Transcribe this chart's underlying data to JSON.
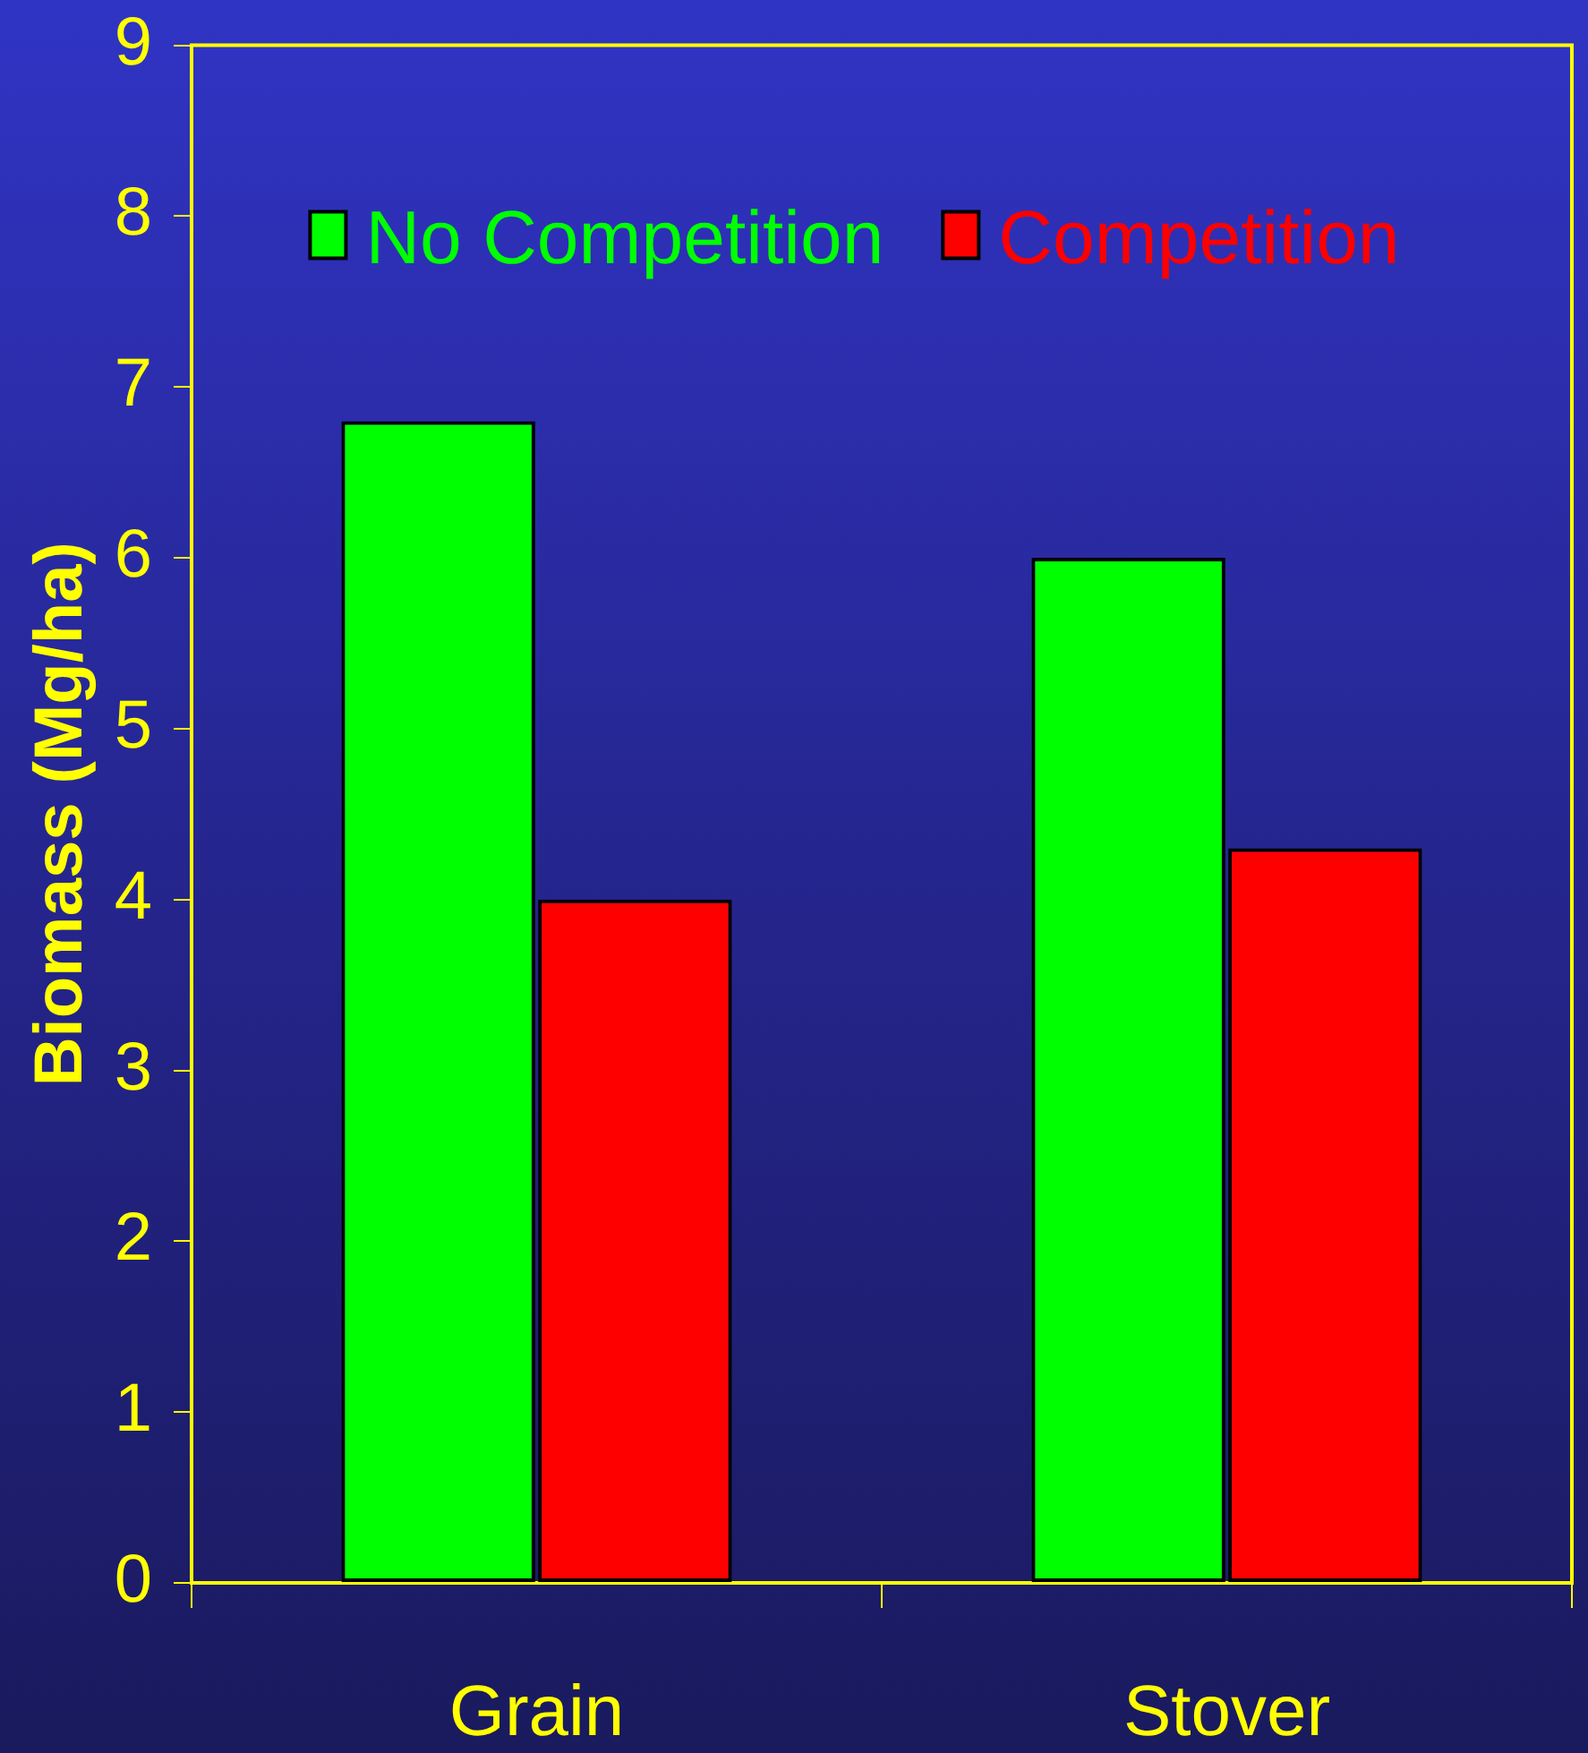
{
  "chart_data": {
    "type": "bar",
    "ylabel": "Biomass (Mg/ha)",
    "categories": [
      "Grain",
      "Stover"
    ],
    "series": [
      {
        "name": "No Competition",
        "color": "#00ff00",
        "values": [
          6.8,
          6.0
        ]
      },
      {
        "name": "Competition",
        "color": "#ff0000",
        "values": [
          4.0,
          4.3
        ]
      }
    ],
    "ylim": [
      0,
      9
    ],
    "yticks": [
      0,
      1,
      2,
      3,
      4,
      5,
      6,
      7,
      8,
      9
    ],
    "legend": "top"
  }
}
